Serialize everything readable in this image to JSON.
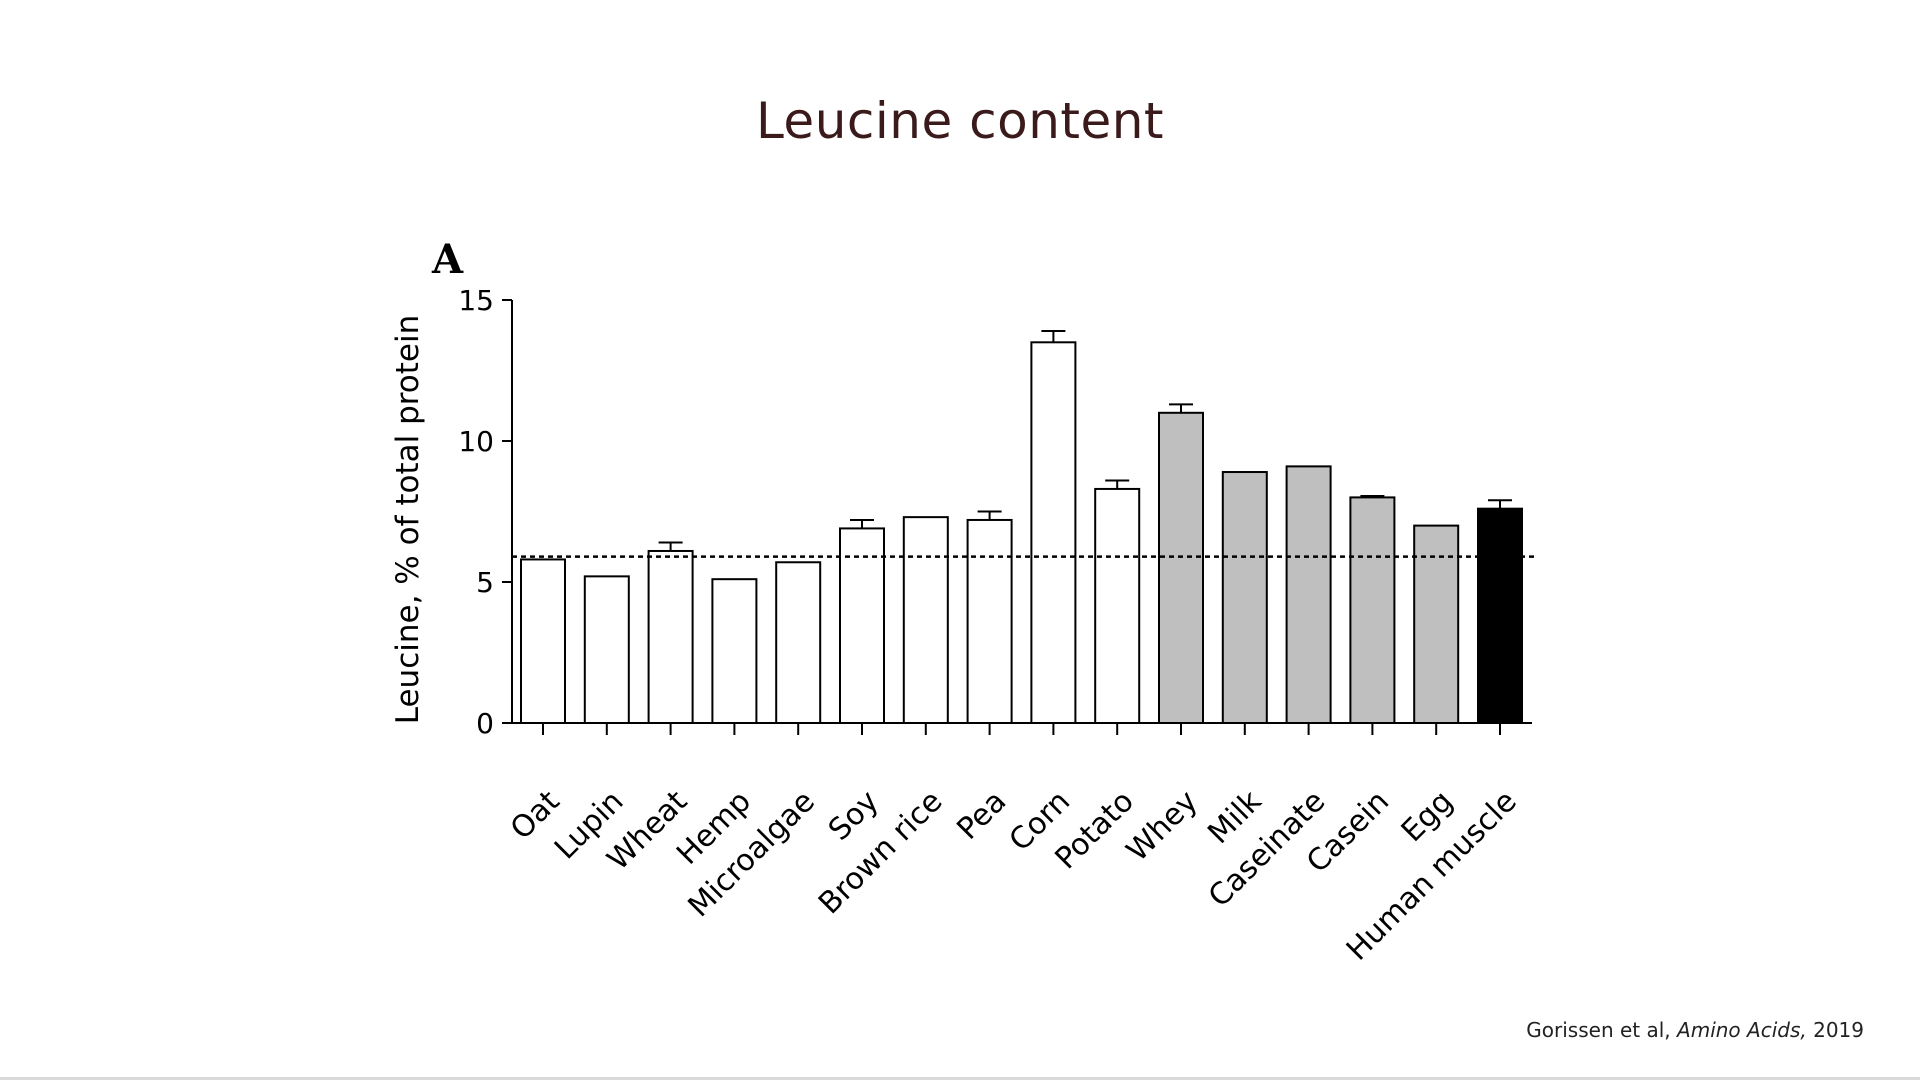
{
  "slide": {
    "title": "Leucine content",
    "panel_label": "A",
    "citation_authors": "Gorissen et al,",
    "citation_journal": "Amino Acids,",
    "citation_year": "2019"
  },
  "chart_data": {
    "type": "bar",
    "title": "",
    "xlabel": "",
    "ylabel": "Leucine, % of total protein",
    "ylim": [
      0,
      15
    ],
    "yticks": [
      0,
      5,
      10,
      15
    ],
    "reference_line": 5.9,
    "categories": [
      "Oat",
      "Lupin",
      "Wheat",
      "Hemp",
      "Microalgae",
      "Soy",
      "Brown rice",
      "Pea",
      "Corn",
      "Potato",
      "Whey",
      "Milk",
      "Caseinate",
      "Casein",
      "Egg",
      "Human muscle"
    ],
    "values": [
      5.8,
      5.2,
      6.1,
      5.1,
      5.7,
      6.9,
      7.3,
      7.2,
      13.5,
      8.3,
      11.0,
      8.9,
      9.1,
      8.0,
      7.0,
      7.6
    ],
    "errors": [
      0,
      0,
      0.3,
      0,
      0,
      0.3,
      0,
      0.3,
      0.4,
      0.3,
      0.3,
      0,
      0,
      0.05,
      0,
      0.3
    ],
    "fills": [
      "#ffffff",
      "#ffffff",
      "#ffffff",
      "#ffffff",
      "#ffffff",
      "#ffffff",
      "#ffffff",
      "#ffffff",
      "#ffffff",
      "#ffffff",
      "#bfbfbf",
      "#bfbfbf",
      "#bfbfbf",
      "#bfbfbf",
      "#bfbfbf",
      "#000000"
    ],
    "grid": false,
    "legend": "none"
  }
}
